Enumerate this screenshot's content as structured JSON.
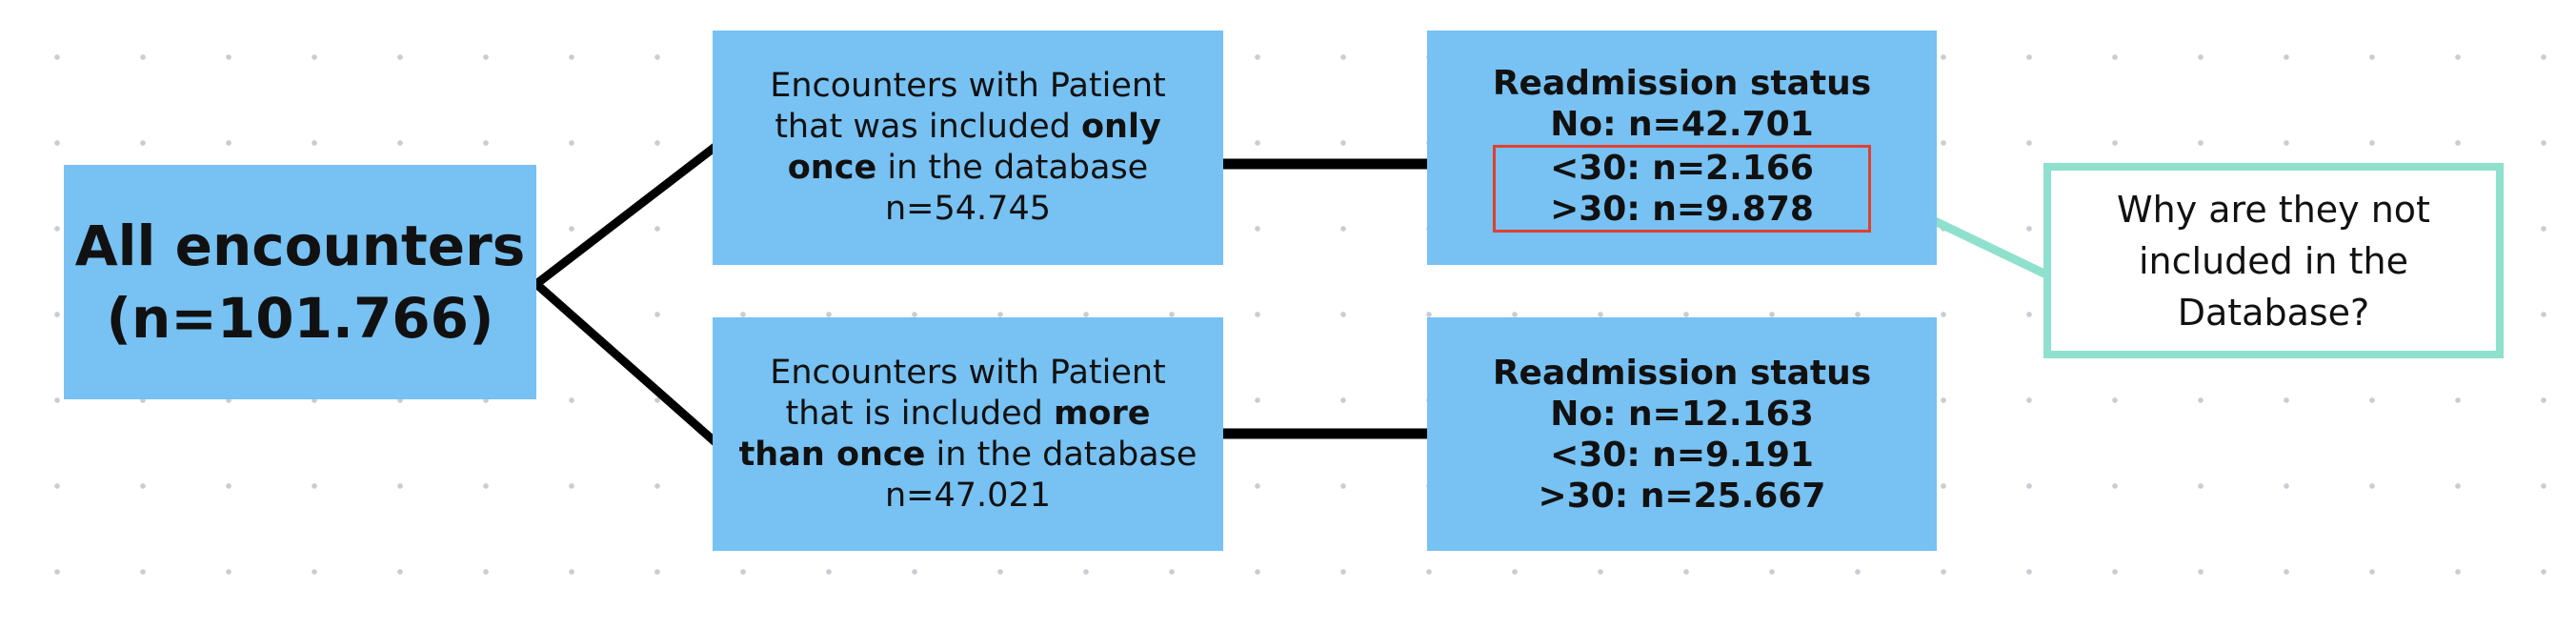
{
  "root": {
    "line1": "All encounters",
    "line2": "(n=101.766)"
  },
  "cohort_once": {
    "line1": "Encounters with Patient",
    "line2_plain": "that was included ",
    "line2_bold": "only",
    "line3_bold": "once",
    "line3_plain": " in the database",
    "line4": "n=54.745"
  },
  "cohort_more": {
    "line1": "Encounters with Patient",
    "line2_plain": "that is included ",
    "line2_bold": "more",
    "line3_bold": "than once",
    "line3_plain": " in the database",
    "line4": "n=47.021"
  },
  "status_once": {
    "title": "Readmission status",
    "no": "No: n=42.701",
    "lt30": "<30: n=2.166",
    "gt30": ">30: n=9.878"
  },
  "status_more": {
    "title": "Readmission status",
    "no": "No: n=12.163",
    "lt30": "<30: n=9.191",
    "gt30": ">30: n=25.667"
  },
  "note": {
    "line1": "Why are they not",
    "line2": "included in the",
    "line3": "Database?"
  },
  "colors": {
    "box_fill": "#77c1f3",
    "highlight_outline": "#e0402e",
    "note_accent": "#8fe0cc",
    "connector": "#000000"
  }
}
